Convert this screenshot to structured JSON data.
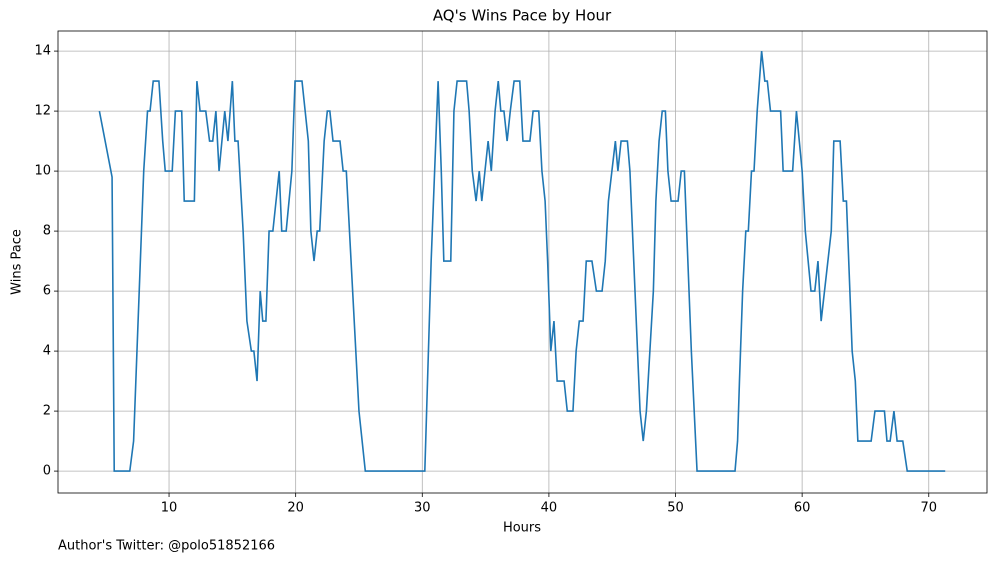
{
  "chart_data": {
    "type": "line",
    "title": "AQ's Wins Pace by Hour",
    "x_label": "Hours",
    "y_label": "Wins Pace",
    "annotation": "Author's Twitter: @polo51852166",
    "x": [
      4.5,
      5.5,
      5.67,
      6.9,
      7.2,
      8.0,
      8.3,
      8.5,
      8.75,
      9.2,
      9.5,
      9.7,
      10.25,
      10.5,
      11,
      11.2,
      12,
      12.2,
      12.45,
      12.9,
      13.2,
      13.45,
      13.7,
      13.95,
      14.4,
      14.65,
      15,
      15.2,
      15.45,
      15.85,
      16.15,
      16.5,
      16.7,
      16.95,
      17.2,
      17.4,
      17.65,
      17.9,
      18.2,
      18.7,
      18.9,
      19.25,
      19.7,
      19.95,
      20.5,
      21,
      21.2,
      21.45,
      21.7,
      21.9,
      22.25,
      22.5,
      22.7,
      22.95,
      23.5,
      23.75,
      24,
      25,
      25.5,
      30.2,
      30.7,
      31.25,
      31.5,
      31.7,
      32.25,
      32.5,
      32.75,
      33.5,
      33.7,
      33.95,
      34.25,
      34.5,
      34.7,
      34.95,
      35.2,
      35.45,
      35.75,
      36,
      36.2,
      36.45,
      36.7,
      36.95,
      37.25,
      37.7,
      37.95,
      38.5,
      38.75,
      39.2,
      39.45,
      39.7,
      39.9,
      40.15,
      40.4,
      40.65,
      41.2,
      41.45,
      41.9,
      42.15,
      42.4,
      42.7,
      42.95,
      43.4,
      43.75,
      44.2,
      44.45,
      44.7,
      45.25,
      45.45,
      45.7,
      46.2,
      46.4,
      47,
      47.2,
      47.45,
      47.7,
      48.25,
      48.45,
      48.7,
      48.95,
      49.2,
      49.4,
      49.65,
      50.2,
      50.45,
      50.7,
      51.25,
      51.7,
      54.7,
      54.9,
      55.05,
      55.3,
      55.55,
      55.75,
      56,
      56.2,
      56.45,
      56.8,
      57.05,
      57.25,
      57.5,
      58.3,
      58.5,
      59.25,
      59.55,
      60,
      60.25,
      60.7,
      61,
      61.25,
      61.5,
      62.3,
      62.5,
      63,
      63.25,
      63.5,
      63.95,
      64.2,
      64.4,
      65.45,
      65.75,
      66.5,
      66.7,
      66.95,
      67.25,
      67.5,
      67.95,
      68.3,
      71.3
    ],
    "values": [
      12,
      9.8,
      0,
      0,
      1,
      10,
      12,
      12,
      13,
      13,
      11,
      10,
      10,
      12,
      12,
      9,
      9,
      13,
      12,
      12,
      11,
      11,
      12,
      10,
      12,
      11,
      13,
      11,
      11,
      8,
      5,
      4,
      4,
      3,
      6,
      5,
      5,
      8,
      8,
      10,
      8,
      8,
      10,
      13,
      13,
      11,
      8,
      7,
      8,
      8,
      11,
      12,
      12,
      11,
      11,
      10,
      10,
      2,
      0,
      0,
      7,
      13,
      10,
      7,
      7,
      12,
      13,
      13,
      12,
      10,
      9,
      10,
      9,
      10,
      11,
      10,
      12,
      13,
      12,
      12,
      11,
      12,
      13,
      13,
      11,
      11,
      12,
      12,
      10,
      9,
      7,
      4,
      5,
      3,
      3,
      2,
      2,
      4,
      5,
      5,
      7,
      7,
      6,
      6,
      7,
      9,
      11,
      10,
      11,
      11,
      10,
      4,
      2,
      1,
      2,
      6,
      9,
      11,
      12,
      12,
      10,
      9,
      9,
      10,
      10,
      4,
      0,
      0,
      1,
      3,
      6,
      8,
      8,
      10,
      10,
      12,
      14,
      13,
      13,
      12,
      12,
      10,
      10,
      12,
      10,
      8,
      6,
      6,
      7,
      5,
      8,
      11,
      11,
      9,
      9,
      4,
      3,
      1,
      1,
      2,
      2,
      1,
      1,
      2,
      1,
      1,
      0,
      0
    ],
    "color": "#1f77b4",
    "xlim": [
      1.23,
      74.6
    ],
    "ylim": [
      -0.73,
      14.67
    ],
    "xticks": [
      10,
      20,
      30,
      40,
      50,
      60,
      70
    ],
    "yticks": [
      0,
      2,
      4,
      6,
      8,
      10,
      12,
      14
    ],
    "grid": true
  }
}
